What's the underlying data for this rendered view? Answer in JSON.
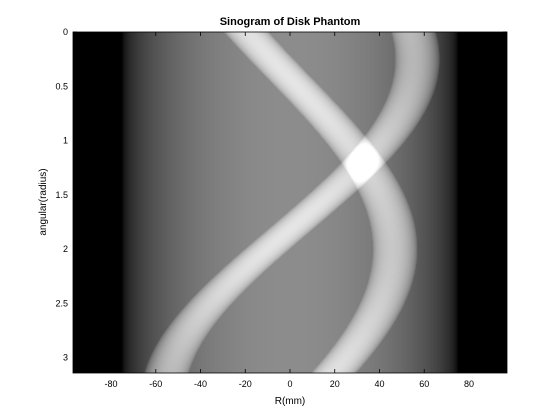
{
  "chart_data": {
    "type": "heatmap",
    "title": "Sinogram of Disk Phantom",
    "xlabel": "R(mm)",
    "ylabel": "angular(radius)",
    "xlim": [
      -97,
      97
    ],
    "ylim": [
      0,
      3.14159
    ],
    "y_reversed": true,
    "xticks": [
      -80,
      -60,
      -40,
      -20,
      0,
      20,
      40,
      60,
      80
    ],
    "yticks": [
      0,
      0.5,
      1,
      1.5,
      2,
      2.5,
      3
    ],
    "xtick_labels": [
      "-80",
      "-60",
      "-40",
      "-20",
      "0",
      "20",
      "40",
      "60",
      "80"
    ],
    "ytick_labels": [
      "0",
      "0.5",
      "1",
      "1.5",
      "2",
      "2.5",
      "3"
    ],
    "colormap": "gray",
    "grid": false,
    "phantom": {
      "outer_disk_radius": 75,
      "outer_disk_intensity": 0.55,
      "inner_disks": [
        {
          "offset": 57,
          "phase": 0.25,
          "radius": 10,
          "intensity": 0.35
        },
        {
          "offset": 47,
          "phase": 2.0,
          "radius": 10,
          "intensity": 0.35
        }
      ]
    },
    "colors": {
      "background": "#ffffff",
      "axes": "#000000"
    }
  }
}
